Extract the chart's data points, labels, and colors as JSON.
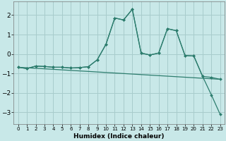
{
  "xlabel": "Humidex (Indice chaleur)",
  "background_color": "#c8e8e8",
  "grid_color": "#a8cccc",
  "line_color": "#2d7d6e",
  "x": [
    0,
    1,
    2,
    3,
    4,
    5,
    6,
    7,
    8,
    9,
    10,
    11,
    12,
    13,
    14,
    15,
    16,
    17,
    18,
    19,
    20,
    21,
    22,
    23
  ],
  "curve_zigzag": [
    -0.68,
    -0.75,
    -0.62,
    -0.64,
    -0.68,
    -0.68,
    -0.72,
    -0.7,
    -0.65,
    -0.3,
    0.5,
    1.85,
    1.75,
    2.3,
    0.05,
    -0.05,
    0.05,
    1.3,
    1.2,
    -0.08,
    -0.1,
    -1.15,
    -1.2,
    -1.3
  ],
  "curve_lower": [
    -0.68,
    -0.75,
    -0.62,
    -0.64,
    -0.68,
    -0.68,
    -0.72,
    -0.7,
    -0.65,
    -0.3,
    0.5,
    1.85,
    1.75,
    2.3,
    0.05,
    -0.05,
    0.05,
    1.3,
    1.2,
    -0.08,
    -0.1,
    -1.15,
    -2.1,
    -3.1
  ],
  "linear_line_x": [
    0,
    23
  ],
  "linear_line_y": [
    -0.68,
    -1.3
  ],
  "ylim": [
    -3.6,
    2.7
  ],
  "xlim": [
    -0.5,
    23.5
  ],
  "yticks": [
    -3,
    -2,
    -1,
    0,
    1,
    2
  ]
}
